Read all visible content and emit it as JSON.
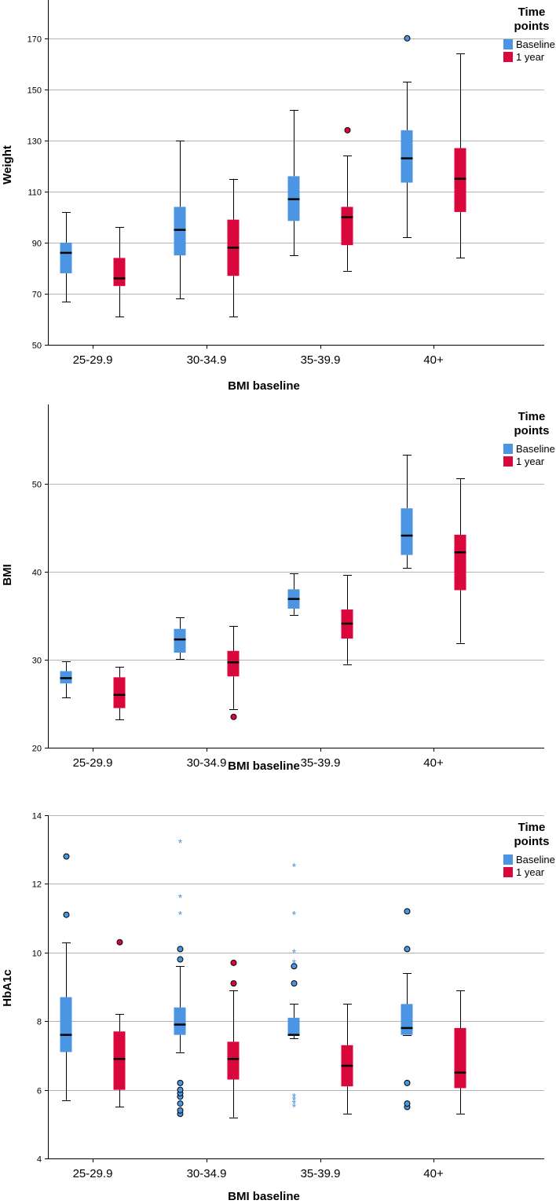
{
  "colors": {
    "baseline": "#4b95e3",
    "one_year": "#d9073c",
    "grid": "#b4b4b4"
  },
  "chart_data": [
    {
      "type": "boxplot",
      "ylabel": "Weight",
      "xlabel": "BMI baseline",
      "categories": [
        "25-29.9",
        "30-34.9",
        "35-39.9",
        "40+"
      ],
      "ylim": [
        50,
        185
      ],
      "yticks": [
        50,
        70,
        90,
        110,
        130,
        150,
        170
      ],
      "grid": true,
      "legend": {
        "title_lines": [
          "Time",
          "points"
        ],
        "placement": "top-right"
      },
      "series": [
        {
          "name": "Baseline",
          "color": "#4b95e3",
          "boxes": [
            {
              "min": 67,
              "q1": 78,
              "median": 86,
              "q3": 90,
              "max": 102,
              "outliers": [],
              "extremes": []
            },
            {
              "min": 68,
              "q1": 85,
              "median": 95,
              "q3": 104,
              "max": 130,
              "outliers": [],
              "extremes": []
            },
            {
              "min": 85,
              "q1": 98.5,
              "median": 107,
              "q3": 116,
              "max": 142,
              "outliers": [],
              "extremes": []
            },
            {
              "min": 92,
              "q1": 113.5,
              "median": 123,
              "q3": 134,
              "max": 153,
              "outliers": [
                170
              ],
              "extremes": []
            }
          ]
        },
        {
          "name": "1 year",
          "color": "#d9073c",
          "boxes": [
            {
              "min": 61,
              "q1": 73,
              "median": 76,
              "q3": 84,
              "max": 96,
              "outliers": [],
              "extremes": []
            },
            {
              "min": 61,
              "q1": 77,
              "median": 88,
              "q3": 99,
              "max": 115,
              "outliers": [],
              "extremes": []
            },
            {
              "min": 79,
              "q1": 89,
              "median": 100,
              "q3": 104,
              "max": 124,
              "outliers": [
                134
              ],
              "extremes": []
            },
            {
              "min": 84,
              "q1": 102,
              "median": 115,
              "q3": 127,
              "max": 164,
              "outliers": [],
              "extremes": []
            }
          ]
        }
      ]
    },
    {
      "type": "boxplot",
      "ylabel": "BMI",
      "xlabel": "BMI baseline",
      "categories": [
        "25-29.9",
        "30-34.9",
        "35-39.9",
        "40+"
      ],
      "ylim": [
        20,
        59
      ],
      "yticks": [
        20,
        30,
        40,
        50
      ],
      "grid": true,
      "legend": {
        "title_lines": [
          "Time",
          "points"
        ],
        "placement": "top-right"
      },
      "series": [
        {
          "name": "Baseline",
          "color": "#4b95e3",
          "boxes": [
            {
              "min": 25.7,
              "q1": 27.3,
              "median": 27.9,
              "q3": 28.7,
              "max": 29.8,
              "outliers": [],
              "extremes": []
            },
            {
              "min": 30.1,
              "q1": 30.8,
              "median": 32.3,
              "q3": 33.5,
              "max": 34.8,
              "outliers": [],
              "extremes": []
            },
            {
              "min": 35.1,
              "q1": 35.8,
              "median": 36.9,
              "q3": 38.0,
              "max": 39.8,
              "outliers": [],
              "extremes": []
            },
            {
              "min": 40.4,
              "q1": 41.9,
              "median": 44.1,
              "q3": 47.2,
              "max": 53.3,
              "outliers": [],
              "extremes": []
            }
          ]
        },
        {
          "name": "1 year",
          "color": "#d9073c",
          "boxes": [
            {
              "min": 23.2,
              "q1": 24.5,
              "median": 26.0,
              "q3": 28.0,
              "max": 29.2,
              "outliers": [],
              "extremes": []
            },
            {
              "min": 24.4,
              "q1": 28.1,
              "median": 29.7,
              "q3": 31.0,
              "max": 33.8,
              "outliers": [
                23.5
              ],
              "extremes": []
            },
            {
              "min": 29.5,
              "q1": 32.4,
              "median": 34.1,
              "q3": 35.7,
              "max": 39.6,
              "outliers": [],
              "extremes": []
            },
            {
              "min": 31.9,
              "q1": 37.9,
              "median": 42.2,
              "q3": 44.2,
              "max": 50.6,
              "outliers": [],
              "extremes": []
            }
          ]
        }
      ]
    },
    {
      "type": "boxplot",
      "ylabel": "HbA1c",
      "xlabel": "BMI baseline",
      "categories": [
        "25-29.9",
        "30-34.9",
        "35-39.9",
        "40+"
      ],
      "ylim": [
        4,
        14
      ],
      "yticks": [
        4,
        6,
        8,
        10,
        12,
        14
      ],
      "grid": true,
      "legend": {
        "title_lines": [
          "Time",
          "points"
        ],
        "placement": "top-right"
      },
      "series": [
        {
          "name": "Baseline",
          "color": "#4b95e3",
          "boxes": [
            {
              "min": 5.7,
              "q1": 7.1,
              "median": 7.6,
              "q3": 8.7,
              "max": 10.3,
              "outliers": [
                11.1,
                12.8
              ],
              "extremes": []
            },
            {
              "min": 7.1,
              "q1": 7.6,
              "median": 7.9,
              "q3": 8.4,
              "max": 9.6,
              "outliers": [
                5.3,
                5.4,
                5.6,
                5.8,
                5.9,
                6.0,
                6.2,
                9.8,
                10.1
              ],
              "extremes": [
                11.1,
                11.6,
                13.2
              ]
            },
            {
              "min": 7.5,
              "q1": 7.6,
              "median": 7.6,
              "q3": 8.1,
              "max": 8.5,
              "outliers": [
                9.1,
                9.6
              ],
              "extremes": [
                5.5,
                5.6,
                5.7,
                5.8,
                9.7,
                10.0,
                11.1,
                12.5
              ]
            },
            {
              "min": 7.6,
              "q1": 7.6,
              "median": 7.8,
              "q3": 8.5,
              "max": 9.4,
              "outliers": [
                5.5,
                5.6,
                6.2,
                10.1,
                11.2
              ],
              "extremes": []
            }
          ]
        },
        {
          "name": "1 year",
          "color": "#d9073c",
          "boxes": [
            {
              "min": 5.5,
              "q1": 6.0,
              "median": 6.9,
              "q3": 7.7,
              "max": 8.2,
              "outliers": [
                10.3
              ],
              "extremes": []
            },
            {
              "min": 5.2,
              "q1": 6.3,
              "median": 6.9,
              "q3": 7.4,
              "max": 8.9,
              "outliers": [
                9.1,
                9.7
              ],
              "extremes": []
            },
            {
              "min": 5.3,
              "q1": 6.1,
              "median": 6.7,
              "q3": 7.3,
              "max": 8.5,
              "outliers": [],
              "extremes": []
            },
            {
              "min": 5.3,
              "q1": 6.05,
              "median": 6.5,
              "q3": 7.8,
              "max": 8.9,
              "outliers": [],
              "extremes": []
            }
          ]
        }
      ]
    }
  ]
}
